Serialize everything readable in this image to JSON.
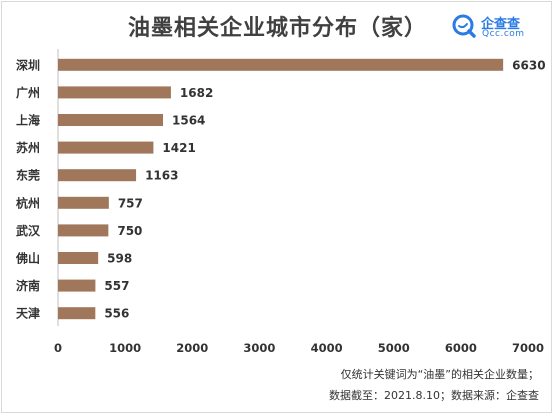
{
  "title": "油墨相关企业城市分布（家）",
  "brand": {
    "name": "企查查",
    "sub": "Qcc.com",
    "logo_icon": "magnifier-icon",
    "color": "#2b7be4"
  },
  "footnotes": [
    "仅统计关键词为“油墨”的相关企业数量；",
    "数据截至：2021.8.10；数据来源：企查查"
  ],
  "chart_data": {
    "type": "bar",
    "orientation": "horizontal",
    "categories": [
      "深圳",
      "广州",
      "上海",
      "苏州",
      "东莞",
      "杭州",
      "武汉",
      "佛山",
      "济南",
      "天津"
    ],
    "values": [
      6630,
      1682,
      1564,
      1421,
      1163,
      757,
      750,
      598,
      557,
      556
    ],
    "xlim": [
      0,
      7000
    ],
    "xticks": [
      0,
      1000,
      2000,
      3000,
      4000,
      5000,
      6000,
      7000
    ],
    "grid": false,
    "legend": "none",
    "bar_color": "#a0775a",
    "title": "油墨相关企业城市分布（家）",
    "xlabel": "",
    "ylabel": ""
  }
}
